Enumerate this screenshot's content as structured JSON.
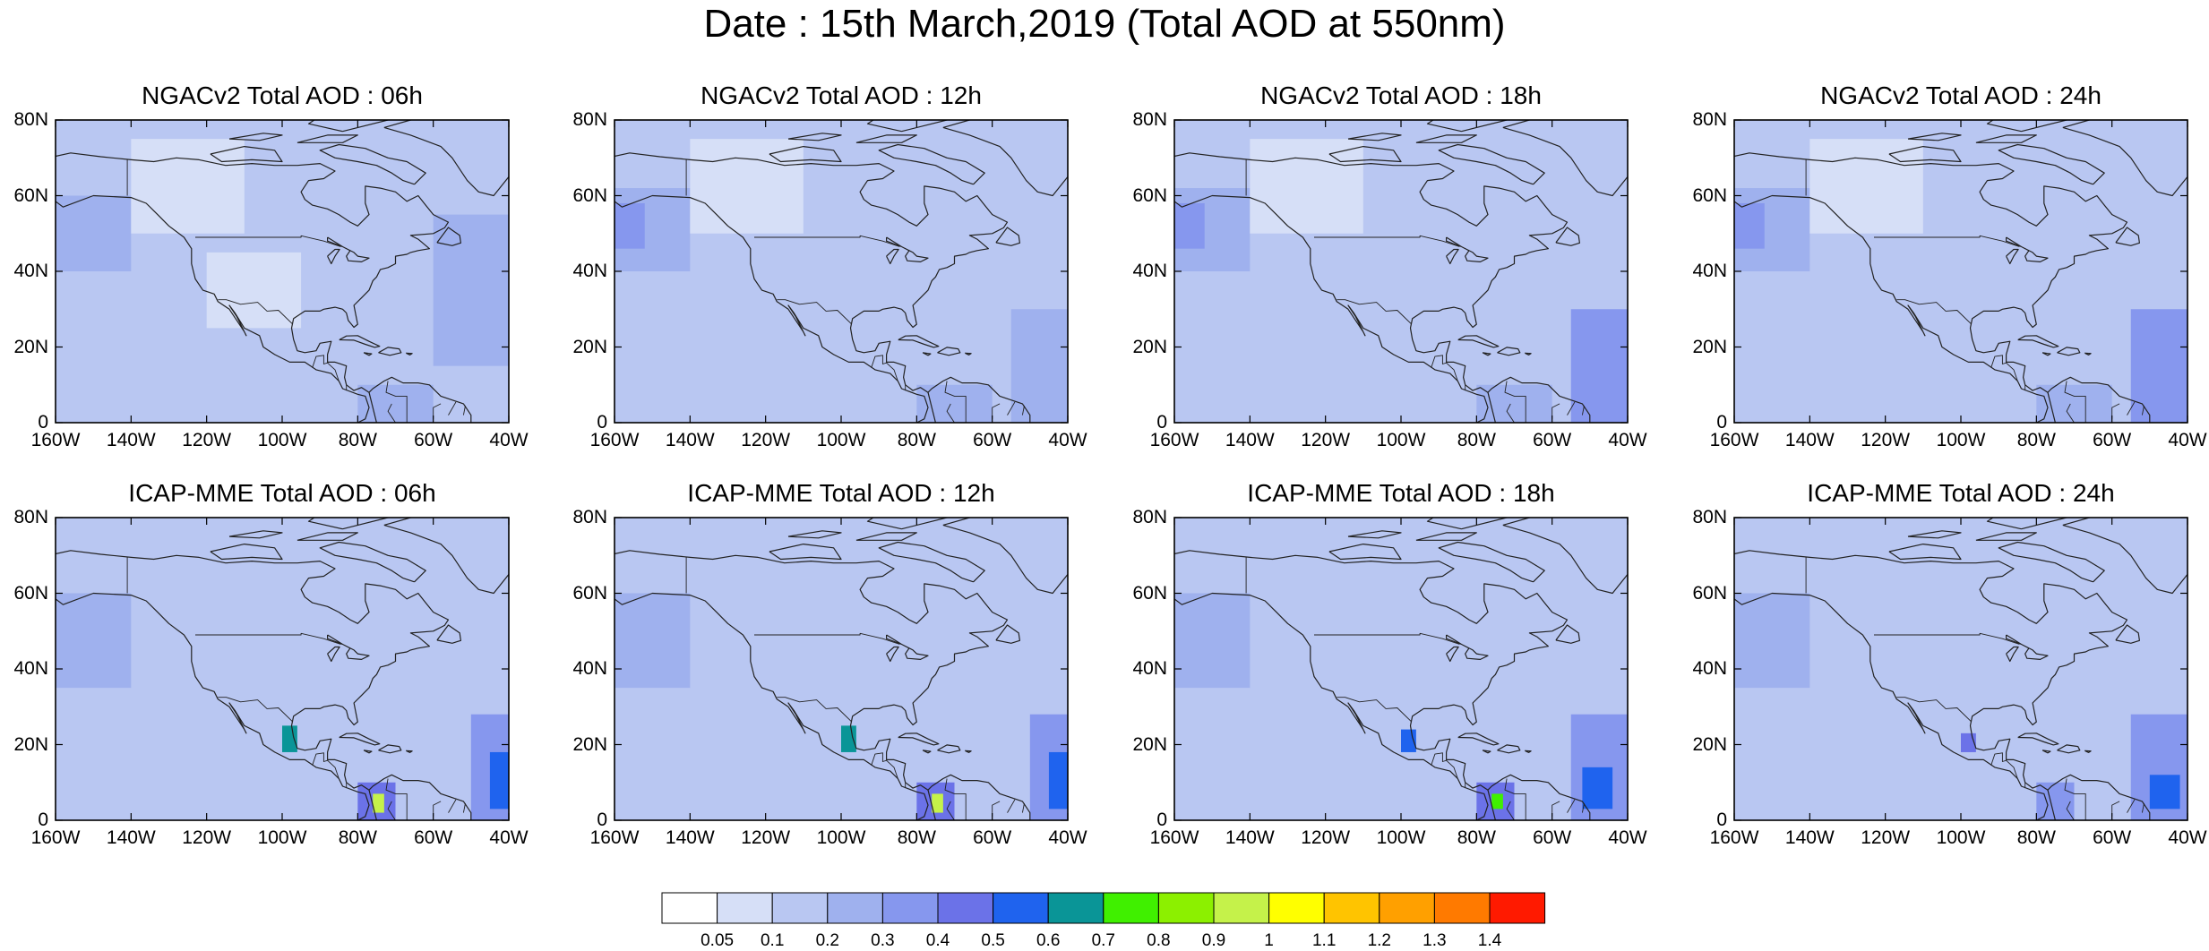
{
  "title": "Date : 15th March,2019 (Total AOD at 550nm)",
  "colors": {
    "coast": "#222222",
    "frame": "#000000"
  },
  "colorbar": {
    "levels": [
      "0.05",
      "0.1",
      "0.2",
      "0.3",
      "0.4",
      "0.5",
      "0.6",
      "0.7",
      "0.8",
      "0.9",
      "1",
      "1.1",
      "1.2",
      "1.3",
      "1.4"
    ],
    "colors": [
      "#ffffff",
      "#d6dff7",
      "#b9c7f2",
      "#9fb1ee",
      "#8697ee",
      "#6b72e8",
      "#1f63ee",
      "#0a9597",
      "#40f000",
      "#8cf000",
      "#c5f24a",
      "#ffff00",
      "#ffc400",
      "#ffa000",
      "#ff7a00",
      "#ff1a00"
    ]
  },
  "chart_data": [
    {
      "type": "heatmap",
      "title": "NGACv2 Total AOD : 06h",
      "model": "NGACv2",
      "forecast_hour": "06h",
      "x_ticks": [
        "160W",
        "140W",
        "120W",
        "100W",
        "80W",
        "60W",
        "40W"
      ],
      "y_ticks": [
        "0",
        "20N",
        "40N",
        "60N",
        "80N"
      ],
      "xlim": [
        -160,
        -40
      ],
      "ylim": [
        0,
        80
      ],
      "variable": "Total AOD at 550nm",
      "features": [
        {
          "region": "background",
          "lon": [
            -160,
            -40
          ],
          "lat": [
            0,
            80
          ],
          "aod": 0.1
        },
        {
          "region": "pacific-plume",
          "lon": [
            -160,
            -140
          ],
          "lat": [
            40,
            60
          ],
          "aod": 0.2
        },
        {
          "region": "atlantic-band",
          "lon": [
            -60,
            -40
          ],
          "lat": [
            15,
            55
          ],
          "aod": 0.2
        },
        {
          "region": "n-south-america",
          "lon": [
            -80,
            -60
          ],
          "lat": [
            0,
            10
          ],
          "aod": 0.2
        },
        {
          "region": "clean-northwest",
          "lon": [
            -140,
            -110
          ],
          "lat": [
            50,
            75
          ],
          "aod": 0.05
        },
        {
          "region": "clean-west-us",
          "lon": [
            -120,
            -95
          ],
          "lat": [
            25,
            45
          ],
          "aod": 0.05
        }
      ]
    },
    {
      "type": "heatmap",
      "title": "NGACv2 Total AOD : 12h",
      "model": "NGACv2",
      "forecast_hour": "12h",
      "x_ticks": [
        "160W",
        "140W",
        "120W",
        "100W",
        "80W",
        "60W",
        "40W"
      ],
      "y_ticks": [
        "0",
        "20N",
        "40N",
        "60N",
        "80N"
      ],
      "xlim": [
        -160,
        -40
      ],
      "ylim": [
        0,
        80
      ],
      "variable": "Total AOD at 550nm",
      "features": [
        {
          "region": "background",
          "lon": [
            -160,
            -40
          ],
          "lat": [
            0,
            80
          ],
          "aod": 0.1
        },
        {
          "region": "pacific-plume",
          "lon": [
            -160,
            -140
          ],
          "lat": [
            40,
            62
          ],
          "aod": 0.2
        },
        {
          "region": "pacific-core",
          "lon": [
            -160,
            -152
          ],
          "lat": [
            46,
            58
          ],
          "aod": 0.3
        },
        {
          "region": "atlantic-band",
          "lon": [
            -55,
            -40
          ],
          "lat": [
            0,
            30
          ],
          "aod": 0.2
        },
        {
          "region": "n-south-america",
          "lon": [
            -80,
            -60
          ],
          "lat": [
            0,
            10
          ],
          "aod": 0.2
        },
        {
          "region": "clean-northwest",
          "lon": [
            -140,
            -110
          ],
          "lat": [
            50,
            75
          ],
          "aod": 0.05
        }
      ]
    },
    {
      "type": "heatmap",
      "title": "NGACv2 Total AOD : 18h",
      "model": "NGACv2",
      "forecast_hour": "18h",
      "x_ticks": [
        "160W",
        "140W",
        "120W",
        "100W",
        "80W",
        "60W",
        "40W"
      ],
      "y_ticks": [
        "0",
        "20N",
        "40N",
        "60N",
        "80N"
      ],
      "xlim": [
        -160,
        -40
      ],
      "ylim": [
        0,
        80
      ],
      "variable": "Total AOD at 550nm",
      "features": [
        {
          "region": "background",
          "lon": [
            -160,
            -40
          ],
          "lat": [
            0,
            80
          ],
          "aod": 0.1
        },
        {
          "region": "pacific-plume",
          "lon": [
            -160,
            -140
          ],
          "lat": [
            40,
            62
          ],
          "aod": 0.2
        },
        {
          "region": "pacific-core",
          "lon": [
            -160,
            -152
          ],
          "lat": [
            46,
            58
          ],
          "aod": 0.3
        },
        {
          "region": "atlantic-band",
          "lon": [
            -55,
            -40
          ],
          "lat": [
            0,
            30
          ],
          "aod": 0.3
        },
        {
          "region": "n-south-america",
          "lon": [
            -80,
            -60
          ],
          "lat": [
            0,
            10
          ],
          "aod": 0.2
        },
        {
          "region": "clean-northwest",
          "lon": [
            -140,
            -110
          ],
          "lat": [
            50,
            75
          ],
          "aod": 0.05
        }
      ]
    },
    {
      "type": "heatmap",
      "title": "NGACv2 Total AOD : 24h",
      "model": "NGACv2",
      "forecast_hour": "24h",
      "x_ticks": [
        "160W",
        "140W",
        "120W",
        "100W",
        "80W",
        "60W",
        "40W"
      ],
      "y_ticks": [
        "0",
        "20N",
        "40N",
        "60N",
        "80N"
      ],
      "xlim": [
        -160,
        -40
      ],
      "ylim": [
        0,
        80
      ],
      "variable": "Total AOD at 550nm",
      "features": [
        {
          "region": "background",
          "lon": [
            -160,
            -40
          ],
          "lat": [
            0,
            80
          ],
          "aod": 0.1
        },
        {
          "region": "pacific-plume",
          "lon": [
            -160,
            -140
          ],
          "lat": [
            40,
            62
          ],
          "aod": 0.2
        },
        {
          "region": "pacific-core",
          "lon": [
            -160,
            -152
          ],
          "lat": [
            46,
            58
          ],
          "aod": 0.3
        },
        {
          "region": "atlantic-band",
          "lon": [
            -55,
            -40
          ],
          "lat": [
            0,
            30
          ],
          "aod": 0.3
        },
        {
          "region": "n-south-america",
          "lon": [
            -80,
            -60
          ],
          "lat": [
            0,
            10
          ],
          "aod": 0.2
        },
        {
          "region": "clean-northwest",
          "lon": [
            -140,
            -110
          ],
          "lat": [
            50,
            75
          ],
          "aod": 0.05
        }
      ]
    },
    {
      "type": "heatmap",
      "title": "ICAP-MME Total AOD : 06h",
      "model": "ICAP-MME",
      "forecast_hour": "06h",
      "x_ticks": [
        "160W",
        "140W",
        "120W",
        "100W",
        "80W",
        "60W",
        "40W"
      ],
      "y_ticks": [
        "0",
        "20N",
        "40N",
        "60N",
        "80N"
      ],
      "xlim": [
        -160,
        -40
      ],
      "ylim": [
        0,
        80
      ],
      "variable": "Total AOD at 550nm",
      "features": [
        {
          "region": "background",
          "lon": [
            -160,
            -40
          ],
          "lat": [
            0,
            80
          ],
          "aod": 0.1
        },
        {
          "region": "pacific-plume",
          "lon": [
            -160,
            -140
          ],
          "lat": [
            35,
            60
          ],
          "aod": 0.2
        },
        {
          "region": "atlantic-dust",
          "lon": [
            -50,
            -40
          ],
          "lat": [
            0,
            28
          ],
          "aod": 0.3
        },
        {
          "region": "atlantic-dust-core",
          "lon": [
            -45,
            -40
          ],
          "lat": [
            3,
            18
          ],
          "aod": 0.5
        },
        {
          "region": "central-america-fires",
          "lon": [
            -80,
            -70
          ],
          "lat": [
            0,
            10
          ],
          "aod": 0.4
        },
        {
          "region": "central-america-peak",
          "lon": [
            -76,
            -73
          ],
          "lat": [
            2,
            7
          ],
          "aod": 0.9
        },
        {
          "region": "mexico-hotspot",
          "lon": [
            -100,
            -96
          ],
          "lat": [
            18,
            25
          ],
          "aod": 0.6
        }
      ]
    },
    {
      "type": "heatmap",
      "title": "ICAP-MME Total AOD : 12h",
      "model": "ICAP-MME",
      "forecast_hour": "12h",
      "x_ticks": [
        "160W",
        "140W",
        "120W",
        "100W",
        "80W",
        "60W",
        "40W"
      ],
      "y_ticks": [
        "0",
        "20N",
        "40N",
        "60N",
        "80N"
      ],
      "xlim": [
        -160,
        -40
      ],
      "ylim": [
        0,
        80
      ],
      "variable": "Total AOD at 550nm",
      "features": [
        {
          "region": "background",
          "lon": [
            -160,
            -40
          ],
          "lat": [
            0,
            80
          ],
          "aod": 0.1
        },
        {
          "region": "pacific-plume",
          "lon": [
            -160,
            -140
          ],
          "lat": [
            35,
            60
          ],
          "aod": 0.2
        },
        {
          "region": "atlantic-dust",
          "lon": [
            -50,
            -40
          ],
          "lat": [
            0,
            28
          ],
          "aod": 0.3
        },
        {
          "region": "atlantic-dust-core",
          "lon": [
            -45,
            -40
          ],
          "lat": [
            3,
            18
          ],
          "aod": 0.5
        },
        {
          "region": "central-america-fires",
          "lon": [
            -80,
            -70
          ],
          "lat": [
            0,
            10
          ],
          "aod": 0.4
        },
        {
          "region": "central-america-peak",
          "lon": [
            -76,
            -73
          ],
          "lat": [
            2,
            7
          ],
          "aod": 0.9
        },
        {
          "region": "mexico-hotspot",
          "lon": [
            -100,
            -96
          ],
          "lat": [
            18,
            25
          ],
          "aod": 0.6
        }
      ]
    },
    {
      "type": "heatmap",
      "title": "ICAP-MME Total AOD : 18h",
      "model": "ICAP-MME",
      "forecast_hour": "18h",
      "x_ticks": [
        "160W",
        "140W",
        "120W",
        "100W",
        "80W",
        "60W",
        "40W"
      ],
      "y_ticks": [
        "0",
        "20N",
        "40N",
        "60N",
        "80N"
      ],
      "xlim": [
        -160,
        -40
      ],
      "ylim": [
        0,
        80
      ],
      "variable": "Total AOD at 550nm",
      "features": [
        {
          "region": "background",
          "lon": [
            -160,
            -40
          ],
          "lat": [
            0,
            80
          ],
          "aod": 0.1
        },
        {
          "region": "pacific-plume",
          "lon": [
            -160,
            -140
          ],
          "lat": [
            35,
            60
          ],
          "aod": 0.2
        },
        {
          "region": "atlantic-dust",
          "lon": [
            -55,
            -40
          ],
          "lat": [
            0,
            28
          ],
          "aod": 0.3
        },
        {
          "region": "atlantic-dust-core",
          "lon": [
            -52,
            -44
          ],
          "lat": [
            3,
            14
          ],
          "aod": 0.5
        },
        {
          "region": "central-america-fires",
          "lon": [
            -80,
            -70
          ],
          "lat": [
            0,
            10
          ],
          "aod": 0.4
        },
        {
          "region": "central-america-peak",
          "lon": [
            -76,
            -73
          ],
          "lat": [
            3,
            7
          ],
          "aod": 0.7
        },
        {
          "region": "mexico-hotspot",
          "lon": [
            -100,
            -96
          ],
          "lat": [
            18,
            24
          ],
          "aod": 0.5
        }
      ]
    },
    {
      "type": "heatmap",
      "title": "ICAP-MME Total AOD : 24h",
      "model": "ICAP-MME",
      "forecast_hour": "24h",
      "x_ticks": [
        "160W",
        "140W",
        "120W",
        "100W",
        "80W",
        "60W",
        "40W"
      ],
      "y_ticks": [
        "0",
        "20N",
        "40N",
        "60N",
        "80N"
      ],
      "xlim": [
        -160,
        -40
      ],
      "ylim": [
        0,
        80
      ],
      "variable": "Total AOD at 550nm",
      "features": [
        {
          "region": "background",
          "lon": [
            -160,
            -40
          ],
          "lat": [
            0,
            80
          ],
          "aod": 0.1
        },
        {
          "region": "pacific-plume",
          "lon": [
            -160,
            -140
          ],
          "lat": [
            35,
            60
          ],
          "aod": 0.2
        },
        {
          "region": "atlantic-dust",
          "lon": [
            -55,
            -40
          ],
          "lat": [
            0,
            28
          ],
          "aod": 0.3
        },
        {
          "region": "atlantic-dust-core",
          "lon": [
            -50,
            -42
          ],
          "lat": [
            3,
            12
          ],
          "aod": 0.5
        },
        {
          "region": "central-america-fires",
          "lon": [
            -80,
            -70
          ],
          "lat": [
            0,
            10
          ],
          "aod": 0.3
        },
        {
          "region": "mexico-hotspot",
          "lon": [
            -100,
            -96
          ],
          "lat": [
            18,
            23
          ],
          "aod": 0.4
        }
      ]
    }
  ]
}
